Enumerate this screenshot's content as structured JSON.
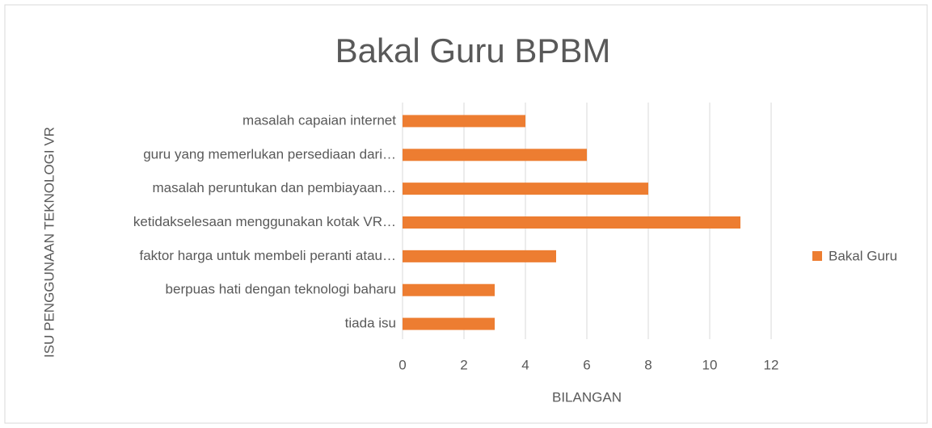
{
  "chart_data": {
    "type": "bar",
    "orientation": "horizontal",
    "title": "Bakal Guru BPBM",
    "x_label": "BILANGAN",
    "y_label": "ISU PENGGUNAAN TEKNOLOGI VR",
    "categories": [
      "masalah capaian internet",
      "guru yang memerlukan persediaan dari…",
      "masalah peruntukan dan pembiayaan…",
      "ketidakselesaan menggunakan kotak VR…",
      "faktor harga untuk membeli peranti atau…",
      "berpuas hati dengan teknologi baharu",
      "tiada isu"
    ],
    "series": [
      {
        "name": "Bakal Guru",
        "color": "#ed7d31",
        "values": [
          4,
          6,
          8,
          11,
          5,
          3,
          3
        ]
      }
    ],
    "xlim": [
      0,
      12
    ],
    "xticks": [
      0,
      2,
      4,
      6,
      8,
      10,
      12
    ],
    "grid": true,
    "legend": "right"
  }
}
